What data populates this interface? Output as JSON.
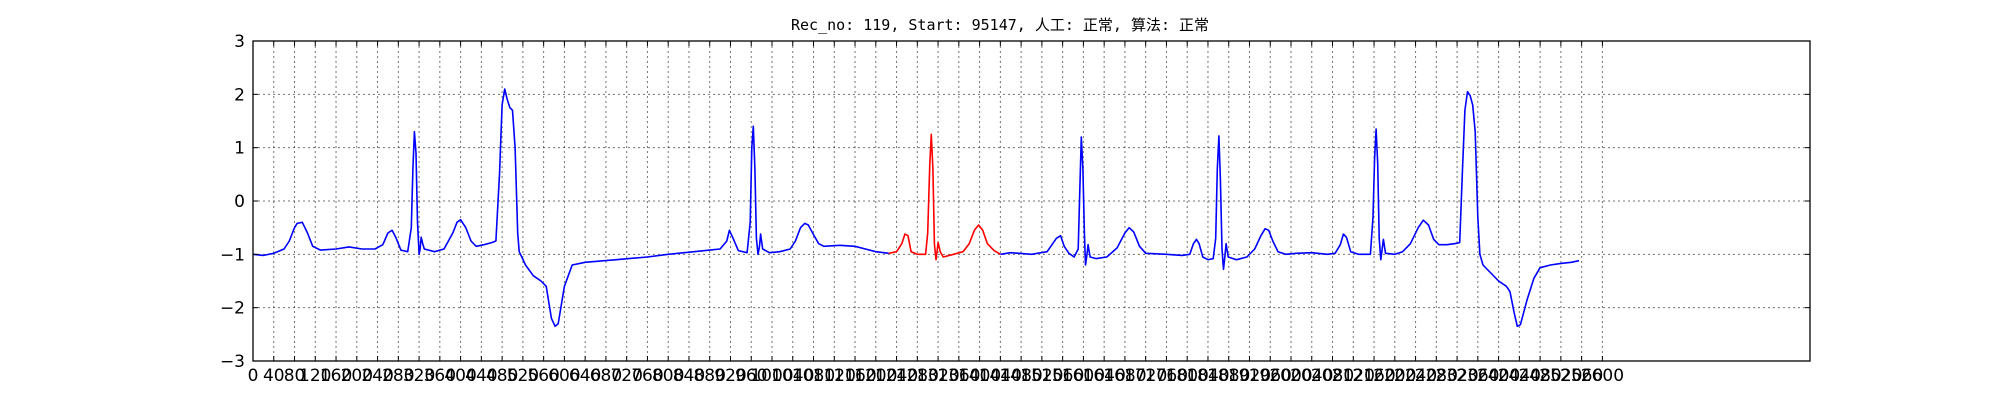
{
  "chart_data": {
    "type": "line",
    "title": "Rec_no: 119, Start: 95147, 人工: 正常, 算法: 正常",
    "xlabel": "",
    "ylabel": "",
    "xlim": [
      0,
      3000
    ],
    "ylim": [
      -3,
      3
    ],
    "yticks": [
      3,
      2,
      1,
      0,
      -1,
      -2,
      -3
    ],
    "ytick_labels": [
      "3",
      "2",
      "1",
      "0",
      "−1",
      "−2",
      "−3"
    ],
    "xticks": [
      0,
      40,
      80,
      120,
      160,
      200,
      240,
      280,
      320,
      360,
      400,
      440,
      480,
      520,
      560,
      600,
      640,
      680,
      720,
      760,
      800,
      840,
      880,
      920,
      960,
      1000,
      1040,
      1080,
      1120,
      1160,
      1200,
      1240,
      1280,
      1320,
      1360,
      1400,
      1440,
      1480,
      1520,
      1560,
      1600,
      1640,
      1680,
      1720,
      1760,
      1800,
      1840,
      1880,
      1920,
      1960,
      2000,
      2040,
      2080,
      2120,
      2160,
      2200,
      2240,
      2280,
      2320,
      2360,
      2400,
      2440,
      2480,
      2520,
      2560,
      2600
    ],
    "xtick_labels": [
      "0",
      "40",
      "80",
      "120",
      "160",
      "200",
      "240",
      "280",
      "320",
      "360",
      "400",
      "440",
      "480",
      "520",
      "560",
      "600",
      "640",
      "680",
      "720",
      "760",
      "800",
      "840",
      "880",
      "920",
      "960",
      "1000",
      "1040",
      "1080",
      "1120",
      "1160",
      "1200",
      "1240",
      "1280",
      "1320",
      "1360",
      "1400",
      "1440",
      "1480",
      "1520",
      "1560",
      "1600",
      "1640",
      "1680",
      "1720",
      "1760",
      "1800",
      "1840",
      "1880",
      "1920",
      "1960",
      "2000",
      "2040",
      "2080",
      "2120",
      "2160",
      "2200",
      "2240",
      "2280",
      "2320",
      "2360",
      "2400",
      "2440",
      "2480",
      "2520",
      "2560",
      "2600"
    ],
    "grid": true,
    "series": [
      {
        "color": "#0000ff",
        "points": [
          [
            0,
            -1.0
          ],
          [
            20,
            -1.02
          ],
          [
            40,
            -0.98
          ],
          [
            60,
            -0.9
          ],
          [
            70,
            -0.75
          ],
          [
            80,
            -0.5
          ],
          [
            85,
            -0.42
          ],
          [
            95,
            -0.4
          ],
          [
            105,
            -0.6
          ],
          [
            115,
            -0.85
          ],
          [
            130,
            -0.92
          ],
          [
            160,
            -0.9
          ],
          [
            185,
            -0.86
          ],
          [
            210,
            -0.9
          ],
          [
            235,
            -0.9
          ],
          [
            250,
            -0.82
          ],
          [
            260,
            -0.6
          ],
          [
            268,
            -0.55
          ],
          [
            276,
            -0.7
          ],
          [
            285,
            -0.92
          ],
          [
            298,
            -0.95
          ],
          [
            305,
            -0.5
          ],
          [
            308,
            0.6
          ],
          [
            311,
            1.3
          ],
          [
            314,
            0.9
          ],
          [
            317,
            -0.4
          ],
          [
            320,
            -1.0
          ],
          [
            322,
            -0.9
          ],
          [
            324,
            -0.68
          ],
          [
            327,
            -0.8
          ],
          [
            330,
            -0.9
          ],
          [
            350,
            -0.95
          ],
          [
            368,
            -0.9
          ],
          [
            385,
            -0.6
          ],
          [
            393,
            -0.4
          ],
          [
            400,
            -0.35
          ],
          [
            410,
            -0.5
          ],
          [
            420,
            -0.75
          ],
          [
            430,
            -0.85
          ],
          [
            445,
            -0.82
          ],
          [
            460,
            -0.78
          ],
          [
            468,
            -0.75
          ],
          [
            475,
            0.5
          ],
          [
            480,
            1.8
          ],
          [
            485,
            2.1
          ],
          [
            490,
            1.9
          ],
          [
            495,
            1.75
          ],
          [
            500,
            1.7
          ],
          [
            505,
            1.0
          ],
          [
            510,
            -0.6
          ],
          [
            513,
            -0.95
          ],
          [
            518,
            -1.05
          ],
          [
            525,
            -1.2
          ],
          [
            540,
            -1.4
          ],
          [
            555,
            -1.5
          ],
          [
            565,
            -1.6
          ],
          [
            575,
            -2.2
          ],
          [
            582,
            -2.35
          ],
          [
            588,
            -2.3
          ],
          [
            600,
            -1.6
          ],
          [
            615,
            -1.2
          ],
          [
            640,
            -1.15
          ],
          [
            700,
            -1.1
          ],
          [
            760,
            -1.05
          ],
          [
            800,
            -1.0
          ],
          [
            850,
            -0.95
          ],
          [
            880,
            -0.92
          ],
          [
            900,
            -0.9
          ],
          [
            913,
            -0.75
          ],
          [
            918,
            -0.55
          ],
          [
            925,
            -0.7
          ],
          [
            935,
            -0.93
          ],
          [
            952,
            -0.97
          ],
          [
            958,
            -0.4
          ],
          [
            961,
            1.0
          ],
          [
            964,
            1.4
          ],
          [
            967,
            0.6
          ],
          [
            970,
            -0.7
          ],
          [
            973,
            -1.0
          ],
          [
            976,
            -0.85
          ],
          [
            978,
            -0.62
          ],
          [
            982,
            -0.9
          ],
          [
            995,
            -0.97
          ],
          [
            1015,
            -0.95
          ],
          [
            1035,
            -0.9
          ],
          [
            1045,
            -0.75
          ],
          [
            1055,
            -0.5
          ],
          [
            1063,
            -0.42
          ],
          [
            1070,
            -0.45
          ],
          [
            1080,
            -0.63
          ],
          [
            1090,
            -0.8
          ],
          [
            1100,
            -0.85
          ],
          [
            1130,
            -0.83
          ],
          [
            1160,
            -0.85
          ],
          [
            1180,
            -0.9
          ],
          [
            1200,
            -0.95
          ],
          [
            1225,
            -0.98
          ]
        ]
      },
      {
        "color": "#ff0000",
        "points": [
          [
            1225,
            -0.98
          ],
          [
            1240,
            -0.95
          ],
          [
            1250,
            -0.8
          ],
          [
            1256,
            -0.62
          ],
          [
            1262,
            -0.65
          ],
          [
            1268,
            -0.95
          ],
          [
            1280,
            -1.0
          ],
          [
            1296,
            -1.0
          ],
          [
            1300,
            -0.6
          ],
          [
            1304,
            0.7
          ],
          [
            1307,
            1.25
          ],
          [
            1310,
            0.6
          ],
          [
            1313,
            -0.8
          ],
          [
            1316,
            -1.1
          ],
          [
            1318,
            -0.95
          ],
          [
            1320,
            -0.78
          ],
          [
            1324,
            -0.95
          ],
          [
            1330,
            -1.05
          ],
          [
            1350,
            -1.0
          ],
          [
            1368,
            -0.95
          ],
          [
            1380,
            -0.8
          ],
          [
            1390,
            -0.55
          ],
          [
            1398,
            -0.45
          ],
          [
            1406,
            -0.55
          ],
          [
            1415,
            -0.8
          ],
          [
            1428,
            -0.93
          ],
          [
            1440,
            -1.0
          ]
        ]
      },
      {
        "color": "#0000ff",
        "points": [
          [
            1440,
            -1.0
          ],
          [
            1460,
            -0.97
          ],
          [
            1500,
            -1.0
          ],
          [
            1530,
            -0.95
          ],
          [
            1548,
            -0.7
          ],
          [
            1556,
            -0.65
          ],
          [
            1563,
            -0.85
          ],
          [
            1572,
            -0.98
          ],
          [
            1582,
            -1.05
          ],
          [
            1590,
            -0.9
          ],
          [
            1593,
            0.2
          ],
          [
            1596,
            1.2
          ],
          [
            1599,
            0.6
          ],
          [
            1602,
            -0.6
          ],
          [
            1604,
            -1.2
          ],
          [
            1607,
            -1.0
          ],
          [
            1609,
            -0.82
          ],
          [
            1613,
            -1.05
          ],
          [
            1625,
            -1.08
          ],
          [
            1645,
            -1.05
          ],
          [
            1665,
            -0.88
          ],
          [
            1680,
            -0.6
          ],
          [
            1688,
            -0.5
          ],
          [
            1697,
            -0.58
          ],
          [
            1708,
            -0.85
          ],
          [
            1720,
            -0.98
          ],
          [
            1760,
            -1.0
          ],
          [
            1790,
            -1.02
          ],
          [
            1805,
            -1.0
          ],
          [
            1812,
            -0.8
          ],
          [
            1818,
            -0.72
          ],
          [
            1823,
            -0.8
          ],
          [
            1830,
            -1.05
          ],
          [
            1840,
            -1.1
          ],
          [
            1850,
            -1.08
          ],
          [
            1855,
            -0.7
          ],
          [
            1858,
            0.6
          ],
          [
            1861,
            1.22
          ],
          [
            1864,
            0.4
          ],
          [
            1867,
            -0.9
          ],
          [
            1870,
            -1.28
          ],
          [
            1873,
            -1.0
          ],
          [
            1875,
            -0.8
          ],
          [
            1879,
            -1.05
          ],
          [
            1895,
            -1.1
          ],
          [
            1915,
            -1.05
          ],
          [
            1930,
            -0.9
          ],
          [
            1942,
            -0.65
          ],
          [
            1950,
            -0.52
          ],
          [
            1957,
            -0.55
          ],
          [
            1965,
            -0.75
          ],
          [
            1975,
            -0.95
          ],
          [
            1990,
            -1.0
          ],
          [
            2010,
            -0.98
          ],
          [
            2040,
            -0.97
          ],
          [
            2070,
            -1.0
          ],
          [
            2085,
            -0.98
          ],
          [
            2095,
            -0.82
          ],
          [
            2101,
            -0.62
          ],
          [
            2107,
            -0.68
          ],
          [
            2115,
            -0.95
          ],
          [
            2130,
            -1.0
          ],
          [
            2153,
            -1.0
          ],
          [
            2158,
            -0.3
          ],
          [
            2161,
            0.8
          ],
          [
            2164,
            1.35
          ],
          [
            2167,
            0.7
          ],
          [
            2170,
            -0.7
          ],
          [
            2173,
            -1.1
          ],
          [
            2176,
            -0.88
          ],
          [
            2178,
            -0.72
          ],
          [
            2182,
            -0.98
          ],
          [
            2200,
            -1.0
          ],
          [
            2215,
            -0.95
          ],
          [
            2230,
            -0.8
          ],
          [
            2245,
            -0.5
          ],
          [
            2255,
            -0.36
          ],
          [
            2265,
            -0.45
          ],
          [
            2275,
            -0.72
          ],
          [
            2285,
            -0.82
          ],
          [
            2300,
            -0.82
          ],
          [
            2315,
            -0.8
          ],
          [
            2325,
            -0.78
          ],
          [
            2330,
            0.5
          ],
          [
            2335,
            1.7
          ],
          [
            2340,
            2.05
          ],
          [
            2345,
            1.98
          ],
          [
            2350,
            1.8
          ],
          [
            2355,
            1.3
          ],
          [
            2360,
            -0.3
          ],
          [
            2364,
            -1.0
          ],
          [
            2370,
            -1.2
          ],
          [
            2385,
            -1.35
          ],
          [
            2400,
            -1.5
          ],
          [
            2415,
            -1.6
          ],
          [
            2422,
            -1.7
          ],
          [
            2430,
            -2.1
          ],
          [
            2436,
            -2.35
          ],
          [
            2442,
            -2.32
          ],
          [
            2455,
            -1.85
          ],
          [
            2468,
            -1.45
          ],
          [
            2480,
            -1.25
          ],
          [
            2500,
            -1.2
          ],
          [
            2520,
            -1.17
          ],
          [
            2540,
            -1.15
          ],
          [
            2555,
            -1.12
          ]
        ]
      }
    ]
  }
}
